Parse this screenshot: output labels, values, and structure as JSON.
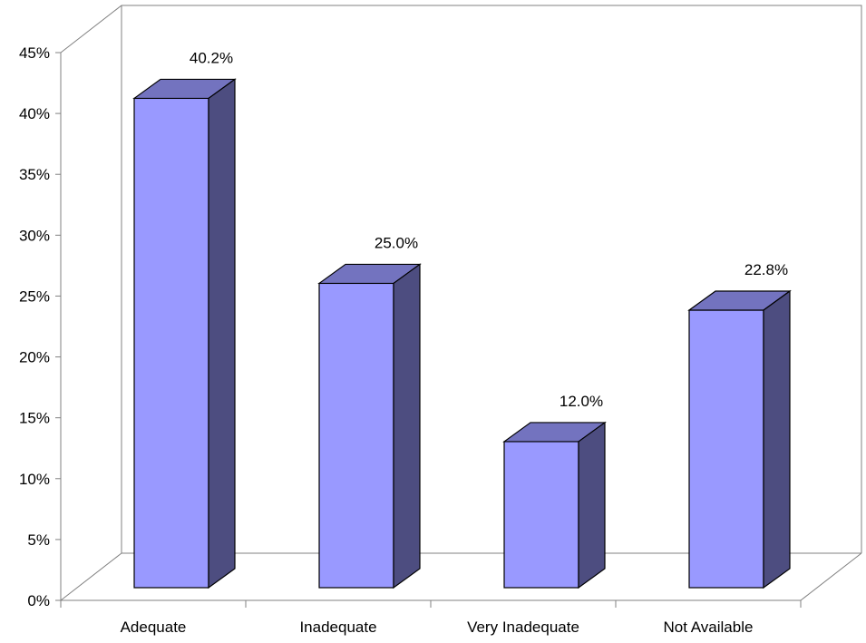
{
  "chart_data": {
    "type": "bar",
    "title": "",
    "xlabel": "",
    "ylabel": "",
    "categories": [
      "Adequate",
      "Inadequate",
      "Very Inadequate",
      "Not Available"
    ],
    "values": [
      40.2,
      25.0,
      12.0,
      22.8
    ],
    "value_labels": [
      "40.2%",
      "25.0%",
      "12.0%",
      "22.8%"
    ],
    "ylim": [
      0,
      45
    ],
    "yticks": [
      0,
      5,
      10,
      15,
      20,
      25,
      30,
      35,
      40,
      45
    ],
    "ytick_labels": [
      "0%",
      "5%",
      "10%",
      "15%",
      "20%",
      "25%",
      "30%",
      "35%",
      "40%",
      "45%"
    ],
    "grid": false,
    "legend": "none",
    "style": "3d",
    "colors": {
      "front": "#9999ff",
      "top": "#7373bf",
      "side": "#4d4d80",
      "outline": "#000000",
      "axis": "#808080"
    }
  }
}
